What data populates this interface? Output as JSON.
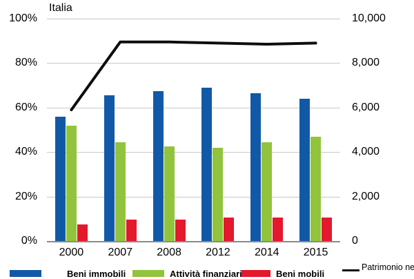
{
  "chart_data": {
    "type": "bar+line",
    "title": "Italia",
    "categories": [
      "2000",
      "2007",
      "2008",
      "2012",
      "2014",
      "2015"
    ],
    "bar_series": [
      {
        "name": "Beni immobili",
        "color": "#1159a6",
        "axis": "left",
        "values": [
          56.0,
          65.5,
          67.5,
          69.0,
          66.5,
          64.0
        ]
      },
      {
        "name": "Attività finanziarie",
        "color": "#92c33c",
        "axis": "left",
        "values": [
          52.0,
          44.5,
          42.5,
          42.0,
          44.5,
          47.0
        ]
      },
      {
        "name": "Beni mobili",
        "color": "#e3192d",
        "axis": "left",
        "values": [
          7.5,
          9.5,
          9.5,
          10.5,
          10.5,
          10.5
        ]
      }
    ],
    "line_series": {
      "name": "Patrimonio netto",
      "color": "#0d0d0d",
      "axis": "right",
      "values": [
        5900,
        8950,
        8950,
        8900,
        8850,
        8900
      ]
    },
    "left_axis": {
      "unit": "%",
      "min": 0,
      "max": 100,
      "ticks": [
        "100%",
        "80%",
        "60%",
        "40%",
        "20%",
        "0%"
      ]
    },
    "right_axis": {
      "min": 0,
      "max": 10000,
      "ticks": [
        "10,000",
        "8,000",
        "6,000",
        "4,000",
        "2,000",
        "0"
      ]
    },
    "grid": true,
    "legend_position": "bottom"
  }
}
